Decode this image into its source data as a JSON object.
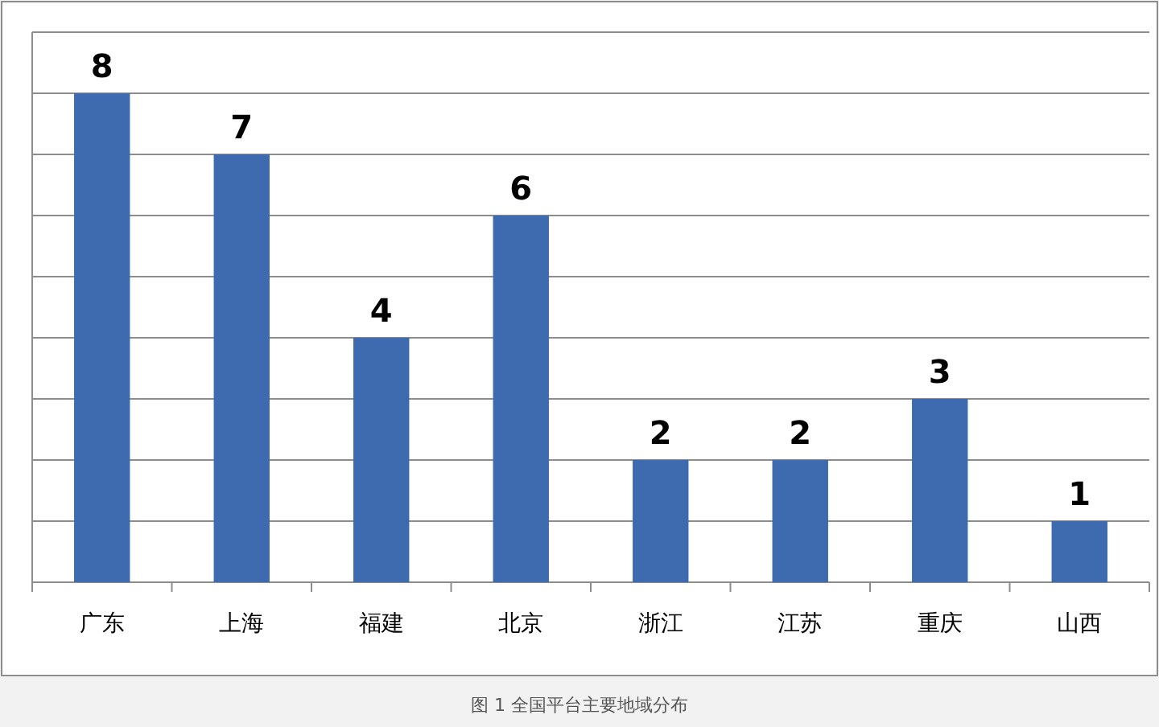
{
  "chart_data": {
    "type": "bar",
    "categories": [
      "广东",
      "上海",
      "福建",
      "北京",
      "浙江",
      "江苏",
      "重庆",
      "山西"
    ],
    "values": [
      8,
      7,
      4,
      6,
      2,
      2,
      3,
      1
    ],
    "color": "#3e6baf",
    "data_labels": true,
    "ylim": [
      0,
      9
    ],
    "yticks": [
      {
        "value": 0,
        "label": null
      },
      {
        "value": 1,
        "label": null
      },
      {
        "value": 2,
        "label": null
      },
      {
        "value": 3,
        "label": null
      },
      {
        "value": 4,
        "label": null
      },
      {
        "value": 5,
        "label": null
      },
      {
        "value": 6,
        "label": null
      },
      {
        "value": 7,
        "label": null
      },
      {
        "value": 8,
        "label": null
      },
      {
        "value": 9,
        "label": null
      }
    ],
    "grid": "y",
    "tick_labels": "x",
    "annotations": [
      "图 1  全国平台主要地域分布"
    ]
  }
}
